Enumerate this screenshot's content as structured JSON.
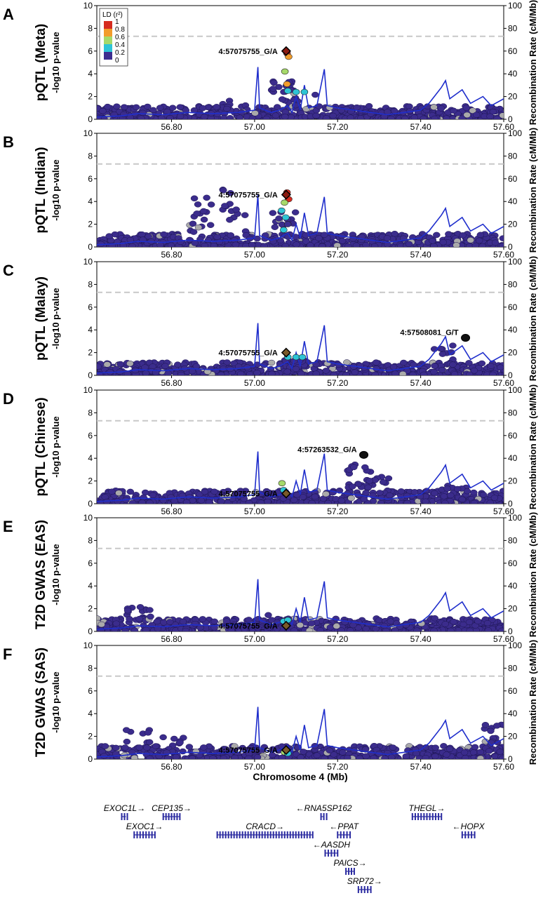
{
  "chart_data": {
    "type": "scatter",
    "x_axis": {
      "label": "Chromosome 4 (Mb)",
      "range": [
        56.62,
        57.6
      ],
      "ticks": [
        "56.80",
        "57.00",
        "57.20",
        "57.40",
        "57.60"
      ]
    },
    "y_axis": {
      "label": "-log10 p-value",
      "range": [
        0,
        10
      ],
      "ticks": [
        "0",
        "2",
        "4",
        "6",
        "8",
        "10"
      ]
    },
    "y2_axis": {
      "label": "Recombination Rate (cM/Mb)",
      "range": [
        0,
        100
      ],
      "ticks": [
        "0",
        "20",
        "40",
        "60",
        "80",
        "100"
      ]
    },
    "significance_line": 7.3,
    "legend": {
      "title": "LD (r²)",
      "entries": [
        {
          "label": "1",
          "color": "#d62b1f"
        },
        {
          "label": "0.8",
          "color": "#f29c2b"
        },
        {
          "label": "0.6",
          "color": "#a6d96a"
        },
        {
          "label": "0.4",
          "color": "#2ec4d6"
        },
        {
          "label": "0.2",
          "color": "#3c2d8f"
        },
        {
          "label": "0",
          "color": "#3c2d8f"
        }
      ]
    },
    "panels": [
      {
        "letter": "A",
        "title": "pQTL  (Meta)",
        "lead": {
          "label": "4:57075755_G/A",
          "x": 57.076,
          "y": 6.0
        },
        "highlights": [
          {
            "x": 57.078,
            "y": 5.8,
            "ld": "1"
          },
          {
            "x": 57.082,
            "y": 5.5,
            "ld": "0.8"
          },
          {
            "x": 57.073,
            "y": 4.2,
            "ld": "0.6"
          },
          {
            "x": 57.078,
            "y": 3.1,
            "ld": "0.8"
          },
          {
            "x": 57.08,
            "y": 2.5,
            "ld": "0.4"
          },
          {
            "x": 57.1,
            "y": 2.4,
            "ld": "0.4"
          },
          {
            "x": 57.12,
            "y": 2.4,
            "ld": "0.4"
          }
        ],
        "peaks": [
          {
            "x": 56.95,
            "y": 1.6
          },
          {
            "x": 57.07,
            "y": 3.5
          },
          {
            "x": 57.12,
            "y": 2.2
          }
        ]
      },
      {
        "letter": "B",
        "title": "pQTL  (Indian)",
        "lead": {
          "label": "4:57075755_G/A",
          "x": 57.076,
          "y": 4.6
        },
        "highlights": [
          {
            "x": 57.078,
            "y": 4.8,
            "ld": "1"
          },
          {
            "x": 57.082,
            "y": 4.2,
            "ld": "1"
          },
          {
            "x": 57.072,
            "y": 3.9,
            "ld": "0.6"
          },
          {
            "x": 57.065,
            "y": 3.2,
            "ld": "0.4"
          },
          {
            "x": 57.075,
            "y": 2.6,
            "ld": "0.4"
          },
          {
            "x": 57.08,
            "y": 2.0,
            "ld": "0.2"
          },
          {
            "x": 57.07,
            "y": 1.5,
            "ld": "0.4"
          }
        ],
        "peaks": [
          {
            "x": 56.87,
            "y": 4.4
          },
          {
            "x": 56.95,
            "y": 5.0
          },
          {
            "x": 57.07,
            "y": 3.5
          }
        ]
      },
      {
        "letter": "C",
        "title": "pQTL  (Malay)",
        "lead": {
          "label": "4:57075755_G/A",
          "x": 57.076,
          "y": 2.0
        },
        "secondary": {
          "label": "4:57508081_G/T",
          "x": 57.508,
          "y": 3.3
        },
        "highlights": [
          {
            "x": 57.08,
            "y": 1.6,
            "ld": "0.4"
          },
          {
            "x": 57.1,
            "y": 1.6,
            "ld": "0.4"
          },
          {
            "x": 57.115,
            "y": 1.6,
            "ld": "0.4"
          }
        ],
        "peaks": [
          {
            "x": 57.45,
            "y": 2.6
          },
          {
            "x": 57.1,
            "y": 1.3
          }
        ]
      },
      {
        "letter": "D",
        "title": "pQTL (Chinese)",
        "lead": {
          "label": "4:57075755_G/A",
          "x": 57.076,
          "y": 0.9
        },
        "secondary": {
          "label": "4:57263532_G/A",
          "x": 57.263,
          "y": 4.3
        },
        "highlights": [
          {
            "x": 57.066,
            "y": 1.8,
            "ld": "0.6"
          },
          {
            "x": 57.07,
            "y": 1.2,
            "ld": "0.4"
          }
        ],
        "peaks": [
          {
            "x": 57.25,
            "y": 3.5
          },
          {
            "x": 57.3,
            "y": 2.3
          },
          {
            "x": 57.48,
            "y": 1.6
          }
        ]
      },
      {
        "letter": "E",
        "title": "T2D GWAS (EAS)",
        "lead": {
          "label": "4:57075755_G/A",
          "x": 57.076,
          "y": 0.5
        },
        "highlights": [
          {
            "x": 57.07,
            "y": 0.9,
            "ld": "0.4"
          },
          {
            "x": 57.08,
            "y": 1.0,
            "ld": "0.4"
          }
        ],
        "peaks": [
          {
            "x": 56.72,
            "y": 2.3
          },
          {
            "x": 57.03,
            "y": 1.4
          }
        ]
      },
      {
        "letter": "F",
        "title": "T2D GWAS (SAS)",
        "lead": {
          "label": "4:57075755_G/A",
          "x": 57.076,
          "y": 0.8
        },
        "highlights": [
          {
            "x": 57.072,
            "y": 0.6,
            "ld": "0.6"
          },
          {
            "x": 57.08,
            "y": 0.5,
            "ld": "0.4"
          }
        ],
        "peaks": [
          {
            "x": 56.72,
            "y": 2.7
          },
          {
            "x": 56.8,
            "y": 2.3
          },
          {
            "x": 57.58,
            "y": 3.0
          }
        ]
      }
    ],
    "recombination": [
      {
        "x": 56.62,
        "y": 2
      },
      {
        "x": 56.68,
        "y": 3
      },
      {
        "x": 56.72,
        "y": 5
      },
      {
        "x": 56.78,
        "y": 4
      },
      {
        "x": 56.84,
        "y": 6
      },
      {
        "x": 56.9,
        "y": 5
      },
      {
        "x": 56.96,
        "y": 6
      },
      {
        "x": 57.0,
        "y": 8
      },
      {
        "x": 57.008,
        "y": 46
      },
      {
        "x": 57.012,
        "y": 10
      },
      {
        "x": 57.04,
        "y": 6
      },
      {
        "x": 57.06,
        "y": 8
      },
      {
        "x": 57.08,
        "y": 12
      },
      {
        "x": 57.09,
        "y": 6
      },
      {
        "x": 57.1,
        "y": 20
      },
      {
        "x": 57.11,
        "y": 8
      },
      {
        "x": 57.12,
        "y": 30
      },
      {
        "x": 57.13,
        "y": 10
      },
      {
        "x": 57.15,
        "y": 12
      },
      {
        "x": 57.168,
        "y": 44
      },
      {
        "x": 57.175,
        "y": 12
      },
      {
        "x": 57.2,
        "y": 10
      },
      {
        "x": 57.24,
        "y": 8
      },
      {
        "x": 57.28,
        "y": 6
      },
      {
        "x": 57.32,
        "y": 4
      },
      {
        "x": 57.36,
        "y": 6
      },
      {
        "x": 57.4,
        "y": 8
      },
      {
        "x": 57.42,
        "y": 14
      },
      {
        "x": 57.45,
        "y": 28
      },
      {
        "x": 57.46,
        "y": 34
      },
      {
        "x": 57.47,
        "y": 18
      },
      {
        "x": 57.5,
        "y": 26
      },
      {
        "x": 57.52,
        "y": 14
      },
      {
        "x": 57.55,
        "y": 20
      },
      {
        "x": 57.57,
        "y": 12
      },
      {
        "x": 57.6,
        "y": 18
      }
    ],
    "genes": [
      {
        "name": "EXOC1L",
        "dir": "right",
        "start": 56.68,
        "end": 56.69,
        "row": 0
      },
      {
        "name": "CEP135",
        "dir": "right",
        "start": 56.78,
        "end": 56.82,
        "row": 0
      },
      {
        "name": "RNA5SP162",
        "dir": "left",
        "start": 57.16,
        "end": 57.165,
        "row": 0
      },
      {
        "name": "THEGL",
        "dir": "right",
        "start": 57.38,
        "end": 57.45,
        "row": 0
      },
      {
        "name": "EXOC1",
        "dir": "right",
        "start": 56.71,
        "end": 56.76,
        "row": 1
      },
      {
        "name": "CRACD",
        "dir": "right",
        "start": 56.91,
        "end": 57.14,
        "row": 1
      },
      {
        "name": "PPAT",
        "dir": "left",
        "start": 57.2,
        "end": 57.23,
        "row": 1
      },
      {
        "name": "HOPX",
        "dir": "left",
        "start": 57.5,
        "end": 57.53,
        "row": 1
      },
      {
        "name": "AASDH",
        "dir": "left",
        "start": 57.17,
        "end": 57.2,
        "row": 2
      },
      {
        "name": "PAICS",
        "dir": "right",
        "start": 57.22,
        "end": 57.24,
        "row": 3
      },
      {
        "name": "SRP72",
        "dir": "right",
        "start": 57.25,
        "end": 57.28,
        "row": 4
      }
    ]
  }
}
